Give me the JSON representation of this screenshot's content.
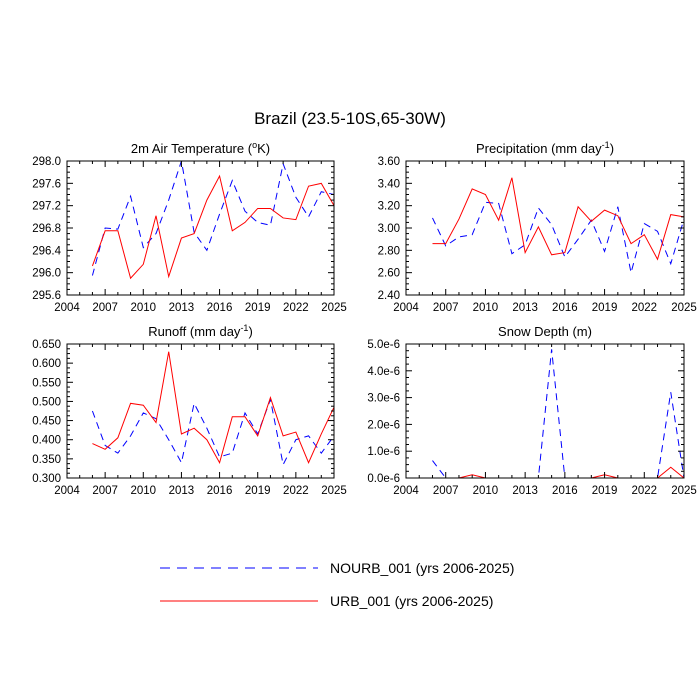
{
  "figure": {
    "title": "Brazil (23.5-10S,65-30W)"
  },
  "legend": {
    "items": [
      {
        "label": "NOURB_001 (yrs 2006-2025)",
        "color": "#0000ff",
        "dash": "dashed"
      },
      {
        "label": "URB_001 (yrs 2006-2025)",
        "color": "#ff0000",
        "dash": "solid"
      }
    ]
  },
  "chart_data": [
    {
      "type": "line",
      "title": "2m Air Temperature (",
      "title_sup": "o",
      "title_suffix": "K)",
      "xlim": [
        2004,
        2025
      ],
      "xticks": [
        2004,
        2007,
        2010,
        2013,
        2016,
        2019,
        2022,
        2025
      ],
      "ylim": [
        295.6,
        298.0
      ],
      "yticks": [
        295.6,
        296.0,
        296.4,
        296.8,
        297.2,
        297.6,
        298.0
      ],
      "ytick_labels": [
        "295.6",
        "296.0",
        "296.4",
        "296.8",
        "297.2",
        "297.6",
        "298.0"
      ],
      "x": [
        2006,
        2007,
        2008,
        2009,
        2010,
        2011,
        2012,
        2013,
        2014,
        2015,
        2016,
        2017,
        2018,
        2019,
        2020,
        2021,
        2022,
        2023,
        2024,
        2025
      ],
      "series": [
        {
          "name": "NOURB_001",
          "color": "#0000ff",
          "dash": "dashed",
          "values": [
            295.95,
            296.8,
            296.78,
            297.37,
            296.45,
            296.7,
            297.3,
            298.0,
            296.72,
            296.4,
            297.05,
            297.65,
            297.1,
            296.9,
            296.85,
            297.95,
            297.35,
            297.0,
            297.45,
            297.4
          ]
        },
        {
          "name": "URB_001",
          "color": "#ff0000",
          "dash": "solid",
          "values": [
            296.12,
            296.75,
            296.75,
            295.9,
            296.15,
            297.02,
            295.93,
            296.62,
            296.7,
            297.3,
            297.73,
            296.75,
            296.9,
            297.15,
            297.15,
            296.98,
            296.95,
            297.55,
            297.6,
            297.2
          ]
        }
      ]
    },
    {
      "type": "line",
      "title": "Precipitation (mm day",
      "title_sup": "-1",
      "title_suffix": ")",
      "xlim": [
        2004,
        2025
      ],
      "xticks": [
        2004,
        2007,
        2010,
        2013,
        2016,
        2019,
        2022,
        2025
      ],
      "ylim": [
        2.4,
        3.6
      ],
      "yticks": [
        2.4,
        2.6,
        2.8,
        3.0,
        3.2,
        3.4,
        3.6
      ],
      "ytick_labels": [
        "2.40",
        "2.60",
        "2.80",
        "3.00",
        "3.20",
        "3.40",
        "3.60"
      ],
      "x": [
        2006,
        2007,
        2008,
        2009,
        2010,
        2011,
        2012,
        2013,
        2014,
        2015,
        2016,
        2017,
        2018,
        2019,
        2020,
        2021,
        2022,
        2023,
        2024,
        2025
      ],
      "series": [
        {
          "name": "NOURB_001",
          "color": "#0000ff",
          "dash": "dashed",
          "values": [
            3.09,
            2.84,
            2.92,
            2.94,
            3.23,
            3.22,
            2.77,
            2.85,
            3.18,
            3.03,
            2.74,
            2.9,
            3.07,
            2.79,
            3.19,
            2.6,
            3.04,
            2.97,
            2.68,
            3.08
          ]
        },
        {
          "name": "URB_001",
          "color": "#ff0000",
          "dash": "solid",
          "values": [
            2.86,
            2.86,
            3.08,
            3.35,
            3.3,
            3.07,
            3.45,
            2.78,
            3.01,
            2.76,
            2.78,
            3.19,
            3.06,
            3.16,
            3.11,
            2.86,
            2.94,
            2.72,
            3.12,
            3.1
          ]
        }
      ]
    },
    {
      "type": "line",
      "title": "Runoff (mm day",
      "title_sup": "-1",
      "title_suffix": ")",
      "xlim": [
        2004,
        2025
      ],
      "xticks": [
        2004,
        2007,
        2010,
        2013,
        2016,
        2019,
        2022,
        2025
      ],
      "ylim": [
        0.3,
        0.65
      ],
      "yticks": [
        0.3,
        0.35,
        0.4,
        0.45,
        0.5,
        0.55,
        0.6,
        0.65
      ],
      "ytick_labels": [
        "0.300",
        "0.350",
        "0.400",
        "0.450",
        "0.500",
        "0.550",
        "0.600",
        "0.650"
      ],
      "x": [
        2006,
        2007,
        2008,
        2009,
        2010,
        2011,
        2012,
        2013,
        2014,
        2015,
        2016,
        2017,
        2018,
        2019,
        2020,
        2021,
        2022,
        2023,
        2024,
        2025
      ],
      "series": [
        {
          "name": "NOURB_001",
          "color": "#0000ff",
          "dash": "dashed",
          "values": [
            0.475,
            0.385,
            0.365,
            0.41,
            0.47,
            0.455,
            0.4,
            0.34,
            0.495,
            0.43,
            0.355,
            0.365,
            0.47,
            0.415,
            0.505,
            0.335,
            0.4,
            0.41,
            0.365,
            0.41
          ]
        },
        {
          "name": "URB_001",
          "color": "#ff0000",
          "dash": "solid",
          "values": [
            0.39,
            0.375,
            0.405,
            0.495,
            0.49,
            0.445,
            0.63,
            0.415,
            0.43,
            0.4,
            0.34,
            0.46,
            0.46,
            0.41,
            0.51,
            0.41,
            0.42,
            0.34,
            0.415,
            0.485
          ]
        }
      ]
    },
    {
      "type": "line",
      "title": "Snow Depth (m)",
      "title_sup": "",
      "title_suffix": "",
      "xlim": [
        2004,
        2025
      ],
      "xticks": [
        2004,
        2007,
        2010,
        2013,
        2016,
        2019,
        2022,
        2025
      ],
      "ylim": [
        0,
        5e-06
      ],
      "yticks": [
        0,
        1e-06,
        2e-06,
        3e-06,
        4e-06,
        5e-06
      ],
      "ytick_labels": [
        "0.0e-6",
        "1.0e-6",
        "2.0e-6",
        "3.0e-6",
        "4.0e-6",
        "5.0e-6"
      ],
      "x": [
        2006,
        2007,
        2008,
        2009,
        2010,
        2011,
        2012,
        2013,
        2014,
        2015,
        2016,
        2017,
        2018,
        2019,
        2020,
        2021,
        2022,
        2023,
        2024,
        2025
      ],
      "series": [
        {
          "name": "NOURB_001",
          "color": "#0000ff",
          "dash": "dashed",
          "values": [
            6.5e-07,
            0,
            0,
            0,
            0,
            0,
            0,
            0,
            0,
            4.8e-06,
            0,
            0,
            0,
            0,
            0,
            0,
            0,
            0,
            3.2e-06,
            0
          ]
        },
        {
          "name": "URB_001",
          "color": "#ff0000",
          "dash": "solid",
          "values": [
            0,
            0,
            0,
            1.2e-07,
            0,
            0,
            0,
            0,
            0,
            0,
            0,
            0,
            0,
            1.2e-07,
            0,
            0,
            0,
            0,
            4e-07,
            0
          ]
        }
      ]
    }
  ]
}
